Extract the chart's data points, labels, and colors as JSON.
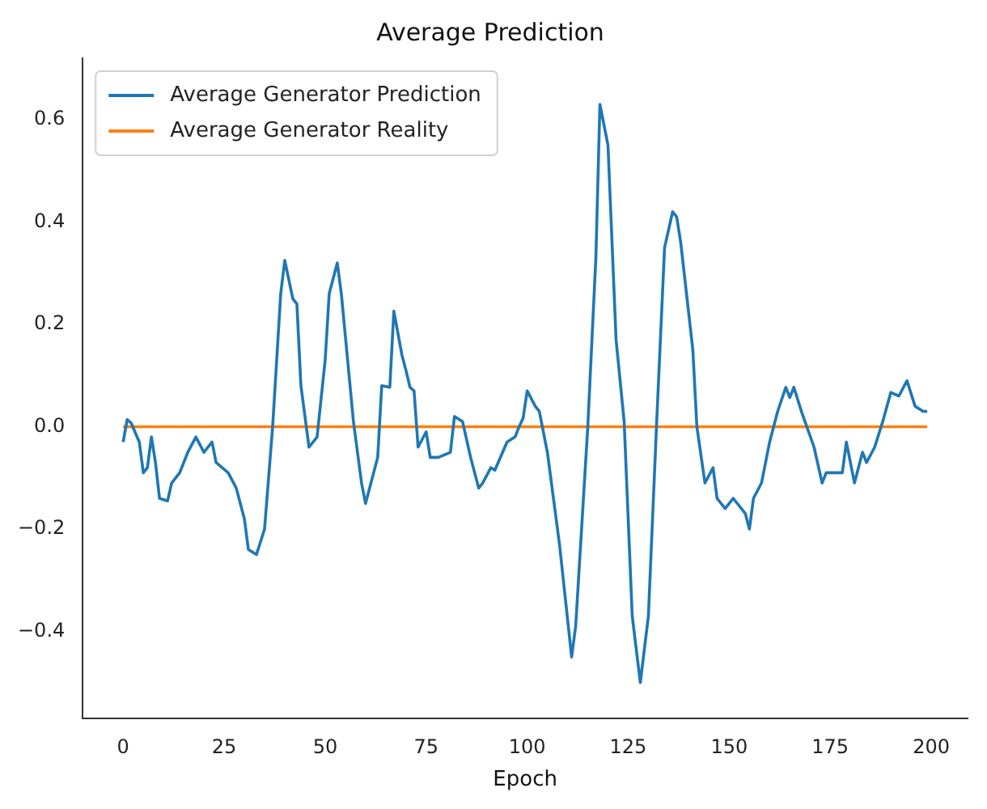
{
  "chart_data": {
    "type": "line",
    "title": "Average Prediction",
    "xlabel": "Epoch",
    "xlim": [
      -10,
      209
    ],
    "xticks": [
      0,
      25,
      50,
      75,
      100,
      125,
      150,
      175,
      200
    ],
    "ylim": [
      -0.57,
      0.72
    ],
    "yticks": [
      {
        "value": -0.4,
        "label": "−0.4"
      },
      {
        "value": -0.2,
        "label": "−0.2"
      },
      {
        "value": 0,
        "label": "0.0"
      },
      {
        "value": 0.2,
        "label": "0.2"
      },
      {
        "value": 0.4,
        "label": "0.4"
      },
      {
        "value": 0.6,
        "label": "0.6"
      }
    ],
    "grid": false,
    "legend": "top left",
    "marker": "none",
    "line_style": "solid",
    "series": [
      {
        "name": "Average Generator Prediction",
        "color": "#1f77b4",
        "x": [
          0,
          1,
          2,
          4,
          5,
          6,
          7,
          8,
          9,
          11,
          12,
          14,
          16,
          18,
          20,
          22,
          23,
          26,
          28,
          30,
          31,
          33,
          35,
          37,
          39,
          40,
          42,
          43,
          44,
          46,
          48,
          50,
          51,
          53,
          54,
          57,
          59,
          60,
          62,
          63,
          64,
          66,
          67,
          69,
          70,
          71,
          72,
          73,
          75,
          76,
          78,
          81,
          82,
          84,
          86,
          88,
          89,
          91,
          92,
          95,
          97,
          98,
          99,
          100,
          102,
          103,
          105,
          108,
          111,
          112,
          115,
          117,
          118,
          120,
          122,
          124,
          126,
          128,
          130,
          132,
          134,
          136,
          137,
          138,
          141,
          142,
          144,
          146,
          147,
          149,
          151,
          154,
          155,
          156,
          158,
          160,
          162,
          164,
          165,
          166,
          168,
          171,
          173,
          174,
          178,
          179,
          181,
          183,
          184,
          186,
          188,
          190,
          192,
          194,
          196,
          198,
          199
        ],
        "values": [
          -0.03,
          0.014,
          0.007,
          -0.03,
          -0.09,
          -0.08,
          -0.02,
          -0.07,
          -0.14,
          -0.145,
          -0.11,
          -0.09,
          -0.05,
          -0.02,
          -0.05,
          -0.03,
          -0.07,
          -0.09,
          -0.12,
          -0.18,
          -0.24,
          -0.25,
          -0.2,
          0.0,
          0.26,
          0.325,
          0.25,
          0.24,
          0.08,
          -0.04,
          -0.02,
          0.13,
          0.26,
          0.32,
          0.26,
          0.01,
          -0.11,
          -0.15,
          -0.09,
          -0.06,
          0.08,
          0.077,
          0.226,
          0.14,
          0.11,
          0.077,
          0.07,
          -0.04,
          -0.01,
          -0.06,
          -0.06,
          -0.05,
          0.02,
          0.01,
          -0.06,
          -0.12,
          -0.11,
          -0.08,
          -0.085,
          -0.03,
          -0.02,
          0.0,
          0.017,
          0.07,
          0.04,
          0.03,
          -0.05,
          -0.23,
          -0.45,
          -0.39,
          0.0,
          0.33,
          0.63,
          0.55,
          0.17,
          0.01,
          -0.37,
          -0.5,
          -0.37,
          0.0,
          0.35,
          0.42,
          0.41,
          0.36,
          0.15,
          0.0,
          -0.11,
          -0.08,
          -0.14,
          -0.16,
          -0.14,
          -0.17,
          -0.2,
          -0.14,
          -0.11,
          -0.03,
          0.03,
          0.077,
          0.057,
          0.077,
          0.027,
          -0.04,
          -0.11,
          -0.09,
          -0.09,
          -0.03,
          -0.11,
          -0.05,
          -0.07,
          -0.04,
          0.01,
          0.067,
          0.06,
          0.09,
          0.04,
          0.03,
          0.03
        ]
      },
      {
        "name": "Average Generator Reality",
        "color": "#ff7f0e",
        "x": [
          0,
          199
        ],
        "values": [
          0,
          0
        ]
      }
    ]
  }
}
